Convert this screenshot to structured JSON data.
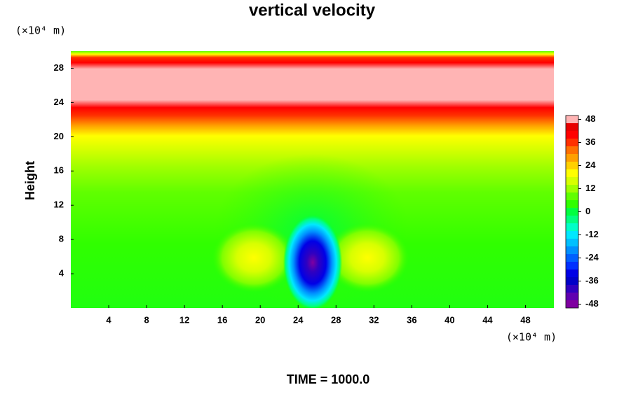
{
  "chart_data": {
    "type": "contour",
    "title": "vertical velocity",
    "ylabel": "Height",
    "xunit": "(×10⁴ m)",
    "yunit": "(×10⁴ m)",
    "footer": "TIME = 1000.0",
    "xlim": [
      0,
      51
    ],
    "ylim": [
      0,
      30
    ],
    "xticks": [
      4,
      8,
      12,
      16,
      20,
      24,
      28,
      32,
      36,
      40,
      44,
      48
    ],
    "yticks": [
      4,
      8,
      12,
      16,
      20,
      24,
      28
    ],
    "colorbar": {
      "clim": [
        -50,
        50
      ],
      "ticks": [
        -48,
        -36,
        -24,
        -12,
        0,
        12,
        24,
        36,
        48
      ],
      "levels": [
        -48,
        -44,
        -40,
        -36,
        -32,
        -28,
        -24,
        -20,
        -16,
        -12,
        -8,
        -4,
        0,
        4,
        8,
        12,
        16,
        20,
        24,
        28,
        32,
        36,
        40,
        44,
        48
      ],
      "colors": [
        "#8000a0",
        "#6000b0",
        "#3000c0",
        "#0000c8",
        "#0000e6",
        "#0030ff",
        "#0060ff",
        "#0090ff",
        "#00c0ff",
        "#00e8ff",
        "#00ffc8",
        "#00ff80",
        "#00ff40",
        "#30ff00",
        "#60ff00",
        "#a0ff00",
        "#d8ff00",
        "#ffff00",
        "#ffd000",
        "#ffa000",
        "#ff7000",
        "#ff3000",
        "#ff0000",
        "#e80000",
        "#ffb4b4"
      ]
    }
  }
}
